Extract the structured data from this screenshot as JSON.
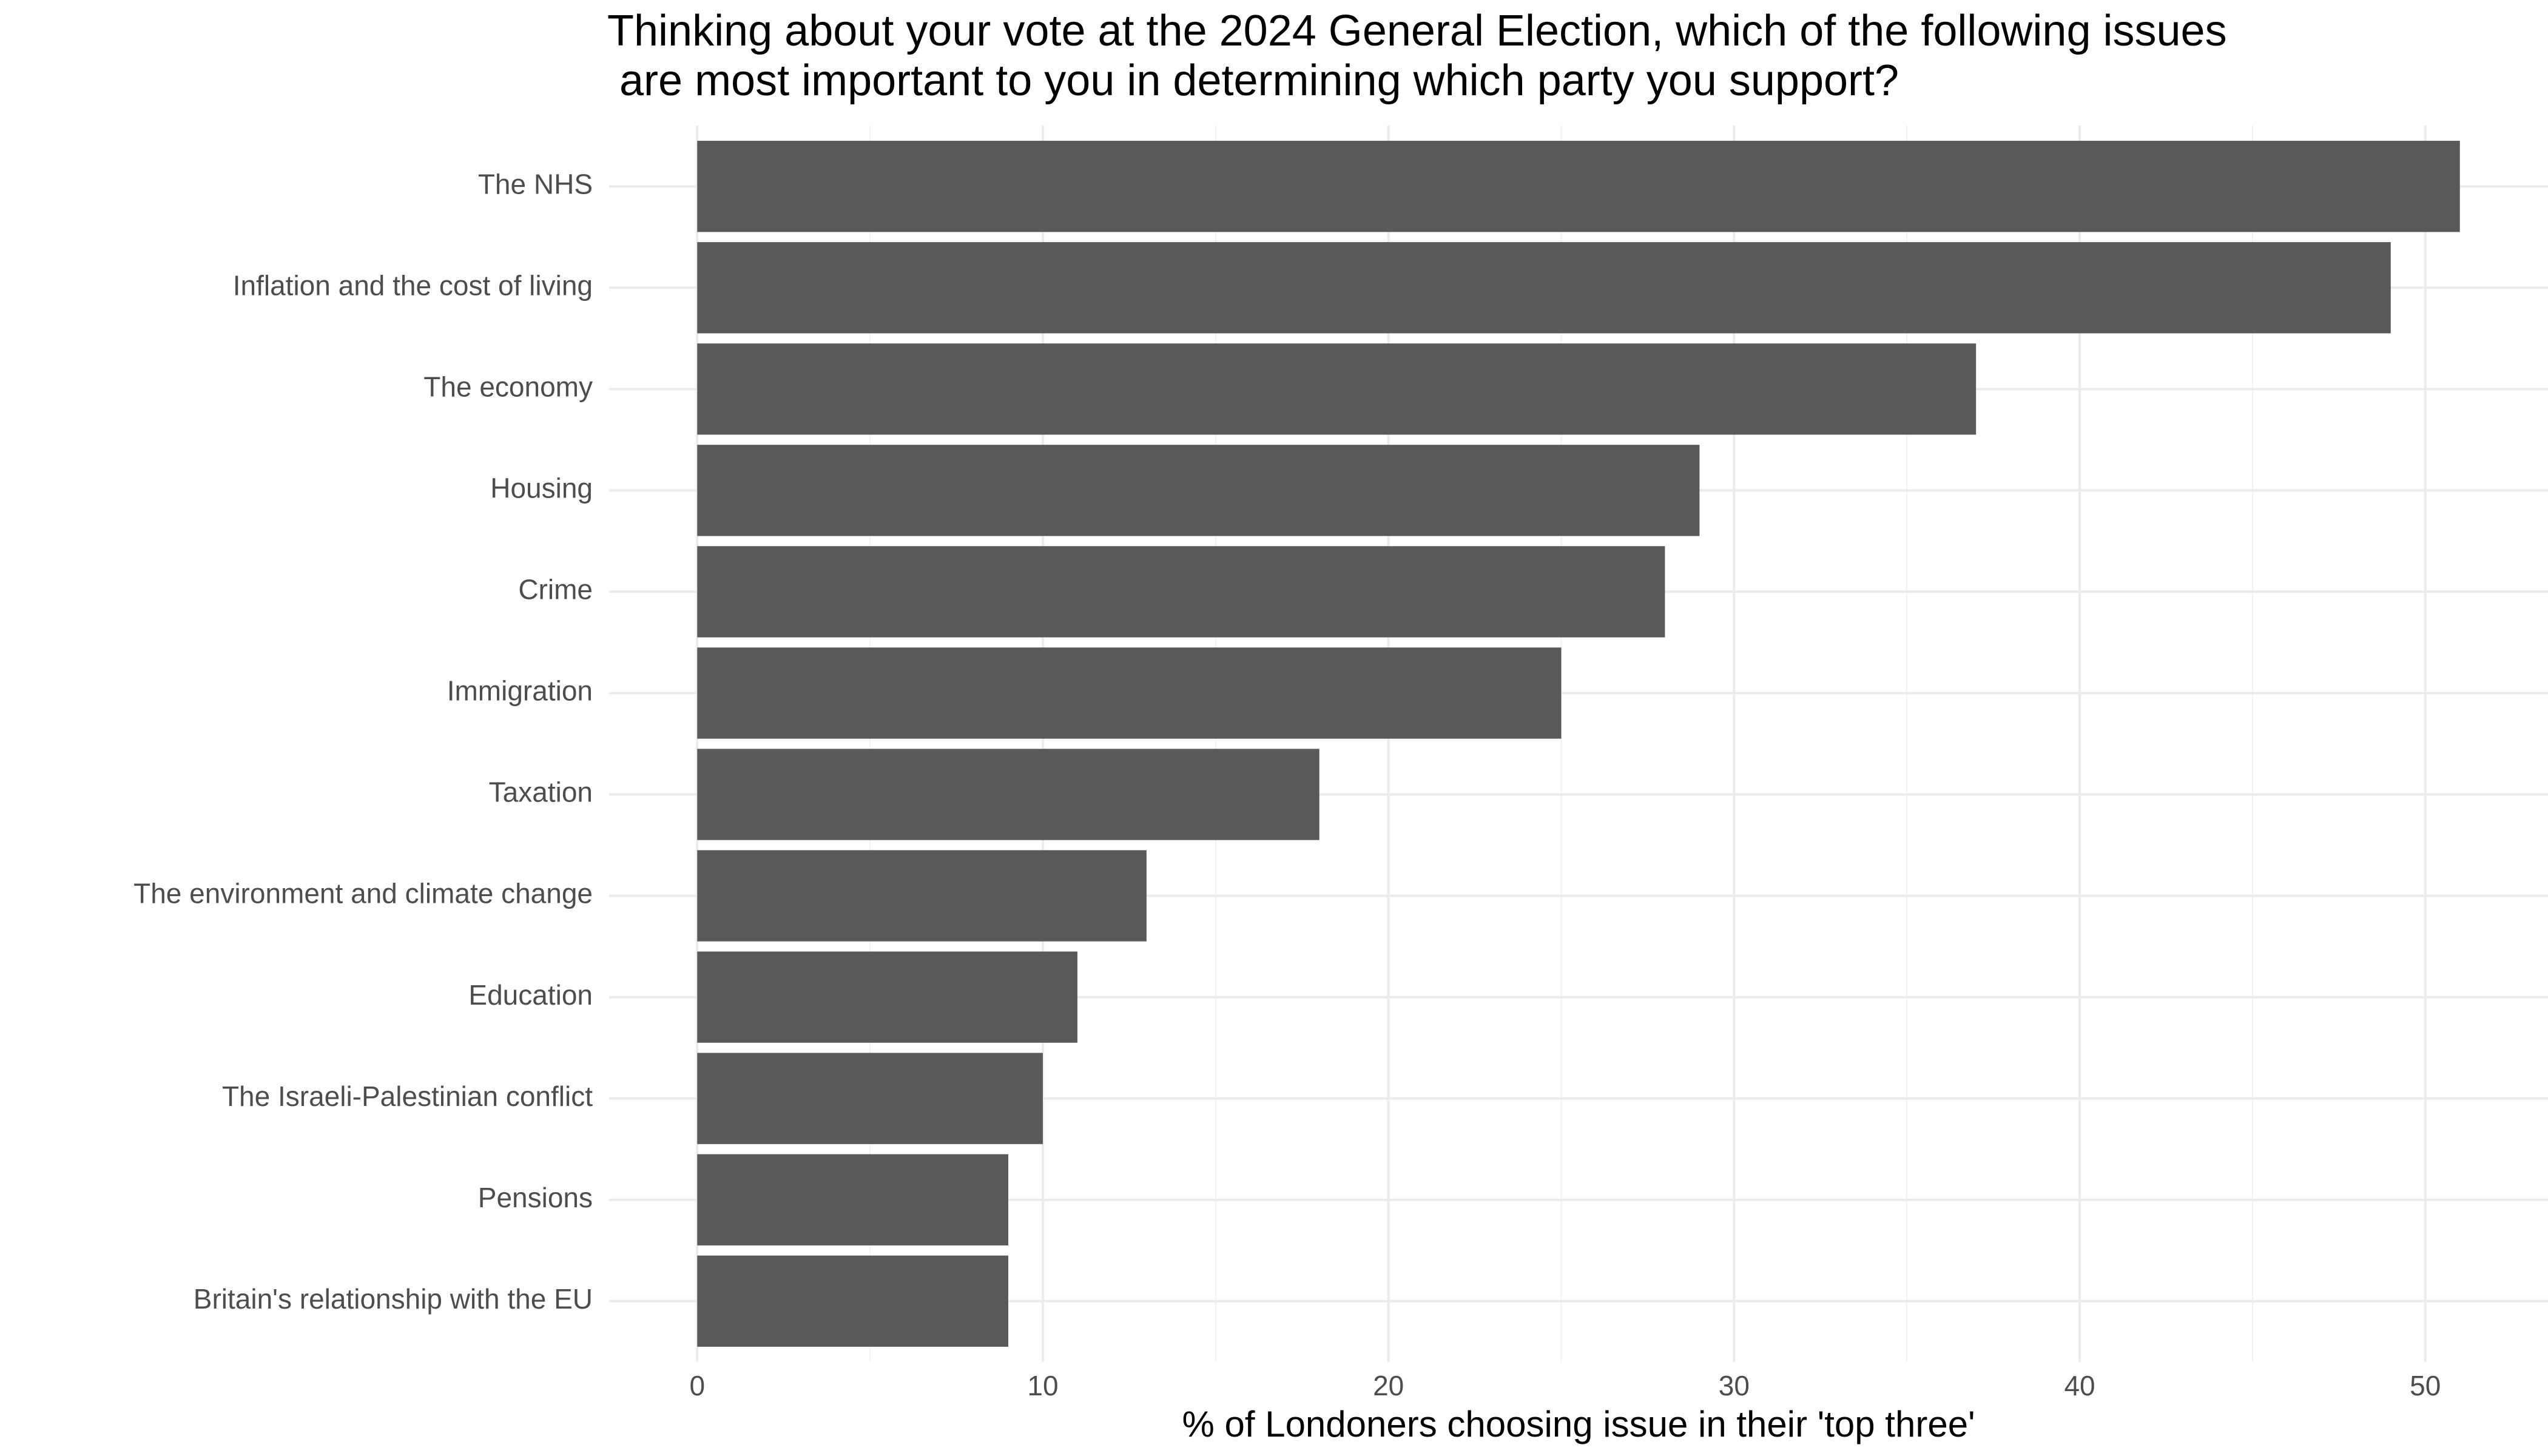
{
  "chart_data": {
    "type": "bar",
    "orientation": "horizontal",
    "title": [
      "Thinking about your vote at the 2024 General Election, which of the following issues",
      " are most important to you in determining which party you support?"
    ],
    "x_label": "% of Londoners choosing issue in their 'top three'",
    "categories": [
      "The NHS",
      "Inflation and the cost of living",
      "The economy",
      "Housing",
      "Crime",
      "Immigration",
      "Taxation",
      "The environment and climate change",
      "Education",
      "The Israeli-Palestinian conflict",
      "Pensions",
      "Britain's relationship with the EU"
    ],
    "values": [
      51,
      49,
      37,
      29,
      28,
      25,
      18,
      13,
      11,
      10,
      9,
      9
    ],
    "color": "#595959",
    "xlim": [
      -2.55,
      53.55
    ],
    "xticks": [
      0,
      10,
      20,
      30,
      40,
      50
    ],
    "grid": true
  }
}
